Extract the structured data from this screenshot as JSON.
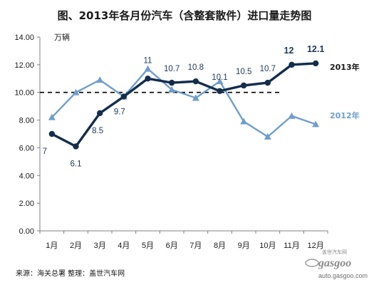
{
  "chart_data": {
    "type": "line",
    "title": "图、2013年各月份汽车（含整套散件）进口量走势图",
    "ylabel": "万辆",
    "categories": [
      "1月",
      "2月",
      "3月",
      "4月",
      "5月",
      "6月",
      "7月",
      "8月",
      "9月",
      "10月",
      "11月",
      "12月"
    ],
    "ylim": [
      0,
      14
    ],
    "yticks": [
      "0.00",
      "2.00",
      "4.00",
      "6.00",
      "8.00",
      "10.00",
      "12.00",
      "14.00"
    ],
    "ytick_values": [
      0,
      2,
      4,
      6,
      8,
      10,
      12,
      14
    ],
    "reference_line": 10,
    "grid": false,
    "series": [
      {
        "name": "2013年",
        "color": "#132d4c",
        "marker": "circle",
        "line": "solid",
        "values": [
          7,
          6.1,
          8.5,
          9.7,
          11,
          10.7,
          10.8,
          10.1,
          10.5,
          10.7,
          12,
          12.1
        ],
        "labels": [
          "7",
          "6.1",
          "8.5",
          "9.7",
          "11",
          "10.7",
          "10.8",
          "10.1",
          "10.5",
          "10.7",
          "12",
          "12.1"
        ]
      },
      {
        "name": "2012年",
        "color": "#6f9ecb",
        "marker": "triangle",
        "line": "solid",
        "values": [
          8.2,
          10,
          10.9,
          9.7,
          11.7,
          10.2,
          9.6,
          10.8,
          7.9,
          6.8,
          8.3,
          7.7
        ]
      }
    ],
    "legend_placement": "right, inline beside line ends"
  },
  "footer": {
    "source": "来源：海关总署   整理：盖世汽车网"
  },
  "watermark": {
    "brand": "gasgoo",
    "url": "auto.gasgoo.com",
    "tagline": "盖世汽车网"
  }
}
